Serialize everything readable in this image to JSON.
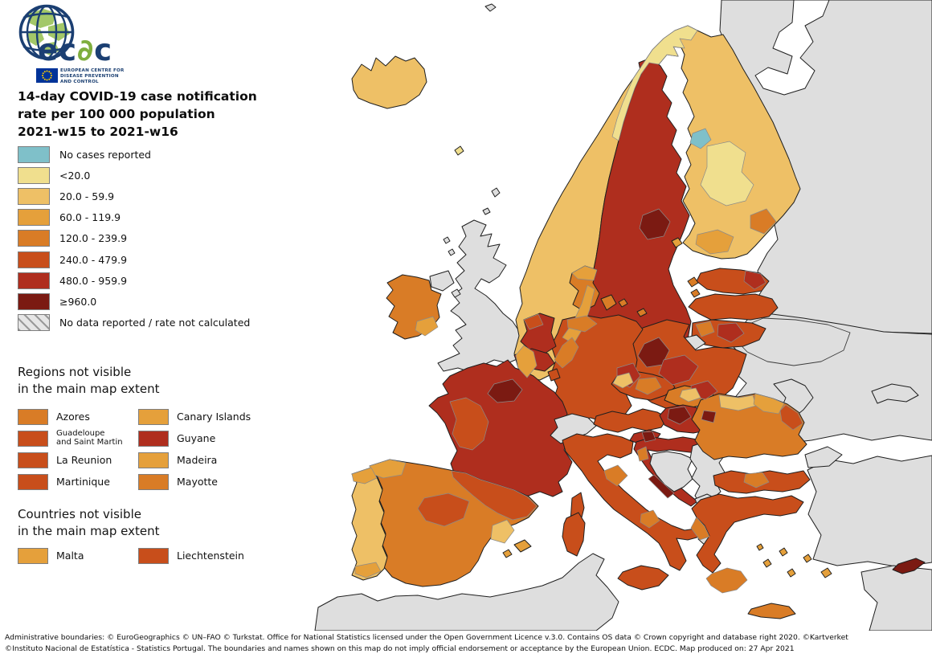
{
  "header": {
    "logo": {
      "brand_parts": [
        "ec",
        "∂",
        "c"
      ],
      "caption_lines": [
        "EUROPEAN CENTRE FOR",
        "DISEASE PREVENTION",
        "AND CONTROL"
      ]
    },
    "title_lines": [
      "14-day COVID-19 case notification",
      "rate per 100 000 population",
      "2021-w15 to 2021-w16"
    ]
  },
  "legend": {
    "items": [
      {
        "key": "no_cases",
        "label": "No cases reported",
        "color": "#7FC0C9",
        "hatched": false
      },
      {
        "key": "lt_20",
        "label": "<20.0",
        "color": "#F0DF8E",
        "hatched": false
      },
      {
        "key": "b20_59",
        "label": "20.0 - 59.9",
        "color": "#EEC066",
        "hatched": false
      },
      {
        "key": "b60_119",
        "label": "60.0 - 119.9",
        "color": "#E5A03B",
        "hatched": false
      },
      {
        "key": "b120_239",
        "label": "120.0 - 239.9",
        "color": "#D97C26",
        "hatched": false
      },
      {
        "key": "b240_479",
        "label": "240.0 - 479.9",
        "color": "#C84E1B",
        "hatched": false
      },
      {
        "key": "b480_959",
        "label": "480.0 - 959.9",
        "color": "#AF2E1E",
        "hatched": false
      },
      {
        "key": "ge_960",
        "label": "≥960.0",
        "color": "#7B1A12",
        "hatched": false
      },
      {
        "key": "no_data",
        "label": "No data reported / rate not calculated",
        "color": "#DEDEDE",
        "hatched": true
      }
    ]
  },
  "regions_not_visible": {
    "title_lines": [
      "Regions not visible",
      "in the main map extent"
    ],
    "items": [
      {
        "label_lines": [
          "Azores"
        ],
        "category": "b120_239"
      },
      {
        "label_lines": [
          "Canary Islands"
        ],
        "category": "b60_119"
      },
      {
        "label_lines": [
          "Guadeloupe",
          "and Saint Martin"
        ],
        "category": "b240_479",
        "small": true
      },
      {
        "label_lines": [
          "Guyane"
        ],
        "category": "b480_959"
      },
      {
        "label_lines": [
          "La Reunion"
        ],
        "category": "b240_479"
      },
      {
        "label_lines": [
          "Madeira"
        ],
        "category": "b60_119"
      },
      {
        "label_lines": [
          "Martinique"
        ],
        "category": "b240_479"
      },
      {
        "label_lines": [
          "Mayotte"
        ],
        "category": "b120_239"
      }
    ]
  },
  "countries_not_visible": {
    "title_lines": [
      "Countries not visible",
      "in the main map extent"
    ],
    "items": [
      {
        "label_lines": [
          "Malta"
        ],
        "category": "b60_119"
      },
      {
        "label_lines": [
          "Liechtenstein"
        ],
        "category": "b240_479"
      }
    ]
  },
  "footer": {
    "lines": [
      "Administrative boundaries: © EuroGeographics © UN–FAO © Turkstat. Office for National Statistics licensed under the Open Government Licence v.3.0. Contains OS data © Crown copyright and database right 2020. ©Kartverket",
      "©Instituto Nacional de Estatística - Statistics Portugal. The boundaries and names shown on this map do not imply official endorsement or acceptance by the European Union. ECDC. Map produced on: 27 Apr 2021"
    ]
  },
  "map": {
    "regions": [
      {
        "name": "russia",
        "category": "no_data",
        "type": "country"
      },
      {
        "name": "white-sea",
        "category": "sea",
        "type": "country"
      },
      {
        "name": "belarus-ukraine",
        "category": "no_data",
        "type": "country"
      },
      {
        "name": "belarus-border",
        "category": "none",
        "type": "border"
      },
      {
        "name": "crimea",
        "category": "no_data",
        "type": "country"
      },
      {
        "name": "moldova",
        "category": "no_data",
        "type": "country"
      },
      {
        "name": "turkey",
        "category": "no_data",
        "type": "country"
      },
      {
        "name": "turkey-thrace",
        "category": "no_data",
        "type": "country"
      },
      {
        "name": "syria",
        "category": "no_data",
        "type": "country"
      },
      {
        "name": "north-africa",
        "category": "no_data",
        "type": "country"
      },
      {
        "name": "jan-mayen",
        "category": "no_data",
        "type": "country"
      },
      {
        "name": "iceland",
        "category": "b20_59",
        "type": "country"
      },
      {
        "name": "faroe",
        "category": "lt_20",
        "type": "country"
      },
      {
        "name": "shetland",
        "category": "no_data",
        "type": "country"
      },
      {
        "name": "orkney",
        "category": "no_data",
        "type": "country"
      },
      {
        "name": "hebrides",
        "category": "no_data",
        "type": "country"
      },
      {
        "name": "uk",
        "category": "no_data",
        "type": "country"
      },
      {
        "name": "northern-ireland",
        "category": "no_data",
        "type": "country"
      },
      {
        "name": "isle-of-man",
        "category": "no_data",
        "type": "country"
      },
      {
        "name": "ireland",
        "category": "b120_239",
        "type": "country"
      },
      {
        "name": "norway",
        "category": "b20_59",
        "type": "country"
      },
      {
        "name": "sweden",
        "category": "b480_959",
        "type": "country"
      },
      {
        "name": "gotland",
        "category": "b480_959",
        "type": "country"
      },
      {
        "name": "oland",
        "category": "b480_959",
        "type": "country"
      },
      {
        "name": "finland",
        "category": "b20_59",
        "type": "country"
      },
      {
        "name": "aland",
        "category": "b60_119",
        "type": "country"
      },
      {
        "name": "estonia",
        "category": "b240_479",
        "type": "country"
      },
      {
        "name": "estonia-islands",
        "category": "b120_239",
        "type": "country"
      },
      {
        "name": "latvia",
        "category": "b240_479",
        "type": "country"
      },
      {
        "name": "lithuania",
        "category": "b240_479",
        "type": "country"
      },
      {
        "name": "kaliningrad",
        "category": "no_data",
        "type": "country"
      },
      {
        "name": "poland",
        "category": "b240_479",
        "type": "country"
      },
      {
        "name": "germany",
        "category": "b240_479",
        "type": "country"
      },
      {
        "name": "denmark",
        "category": "b120_239",
        "type": "country"
      },
      {
        "name": "denmark-isles",
        "category": "b120_239",
        "type": "country"
      },
      {
        "name": "bornholm",
        "category": "b120_239",
        "type": "country"
      },
      {
        "name": "netherlands",
        "category": "b480_959",
        "type": "country"
      },
      {
        "name": "belgium",
        "category": "b480_959",
        "type": "country"
      },
      {
        "name": "luxembourg",
        "category": "b240_479",
        "type": "country"
      },
      {
        "name": "france",
        "category": "b480_959",
        "type": "country"
      },
      {
        "name": "corsica",
        "category": "b240_479",
        "type": "country"
      },
      {
        "name": "spain",
        "category": "b120_239",
        "type": "country"
      },
      {
        "name": "balearics",
        "category": "b60_119",
        "type": "country"
      },
      {
        "name": "portugal",
        "category": "b20_59",
        "type": "country"
      },
      {
        "name": "switzerland",
        "category": "no_data",
        "type": "country"
      },
      {
        "name": "italy",
        "category": "b240_479",
        "type": "country"
      },
      {
        "name": "sicily",
        "category": "b240_479",
        "type": "country"
      },
      {
        "name": "sardinia",
        "category": "b240_479",
        "type": "country"
      },
      {
        "name": "austria",
        "category": "b240_479",
        "type": "country"
      },
      {
        "name": "czechia",
        "category": "b240_479",
        "type": "country"
      },
      {
        "name": "slovakia",
        "category": "b120_239",
        "type": "country"
      },
      {
        "name": "hungary",
        "category": "b480_959",
        "type": "country"
      },
      {
        "name": "slovenia",
        "category": "b480_959",
        "type": "country"
      },
      {
        "name": "croatia",
        "category": "b480_959",
        "type": "country"
      },
      {
        "name": "bosnia",
        "category": "no_data",
        "type": "country"
      },
      {
        "name": "serbia",
        "category": "no_data",
        "type": "country"
      },
      {
        "name": "montenegro-albania-nmk",
        "category": "no_data",
        "type": "country"
      },
      {
        "name": "romania",
        "category": "b120_239",
        "type": "country"
      },
      {
        "name": "bulgaria",
        "category": "b240_479",
        "type": "country"
      },
      {
        "name": "greece",
        "category": "b240_479",
        "type": "country"
      },
      {
        "name": "crete",
        "category": "b120_239",
        "type": "country"
      },
      {
        "name": "aegean-islands",
        "category": "b60_119",
        "type": "country"
      },
      {
        "name": "cyprus",
        "category": "ge_960",
        "type": "country"
      },
      {
        "name": "norway-north",
        "category": "lt_20",
        "type": "patch"
      },
      {
        "name": "norway-south-center",
        "category": "b60_119",
        "type": "patch"
      },
      {
        "name": "norway-oslo",
        "category": "b120_239",
        "type": "patch"
      },
      {
        "name": "norway-south-tip",
        "category": "b60_119",
        "type": "patch"
      },
      {
        "name": "sweden-north-patch",
        "category": "ge_960",
        "type": "patch"
      },
      {
        "name": "sweden-south-patch",
        "category": "ge_960",
        "type": "patch"
      },
      {
        "name": "finland-center",
        "category": "lt_20",
        "type": "patch"
      },
      {
        "name": "finland-lake",
        "category": "no_cases",
        "type": "patch"
      },
      {
        "name": "finland-south",
        "category": "b60_119",
        "type": "patch"
      },
      {
        "name": "finland-southeast",
        "category": "b120_239",
        "type": "patch"
      },
      {
        "name": "estonia-ne",
        "category": "b480_959",
        "type": "patch"
      },
      {
        "name": "lithuania-dark",
        "category": "b480_959",
        "type": "patch"
      },
      {
        "name": "lithuania-west",
        "category": "b120_239",
        "type": "patch"
      },
      {
        "name": "poland-south",
        "category": "b480_959",
        "type": "patch"
      },
      {
        "name": "poland-se",
        "category": "b480_959",
        "type": "patch"
      },
      {
        "name": "germany-north",
        "category": "b120_239",
        "type": "patch"
      },
      {
        "name": "germany-east",
        "category": "b480_959",
        "type": "patch"
      },
      {
        "name": "denmark-north",
        "category": "b60_119",
        "type": "patch"
      },
      {
        "name": "netherlands-north",
        "category": "b240_479",
        "type": "patch"
      },
      {
        "name": "ireland-se",
        "category": "b60_119",
        "type": "patch"
      },
      {
        "name": "france-west",
        "category": "b240_479",
        "type": "patch"
      },
      {
        "name": "paris",
        "category": "ge_960",
        "type": "patch"
      },
      {
        "name": "spain-nw",
        "category": "b60_119",
        "type": "patch"
      },
      {
        "name": "spain-ne",
        "category": "b240_479",
        "type": "patch"
      },
      {
        "name": "spain-center",
        "category": "b240_479",
        "type": "patch"
      },
      {
        "name": "spain-valencia",
        "category": "b20_59",
        "type": "patch"
      },
      {
        "name": "portugal-north",
        "category": "b60_119",
        "type": "patch"
      },
      {
        "name": "portugal-south",
        "category": "b60_119",
        "type": "patch"
      },
      {
        "name": "italy-center",
        "category": "b120_239",
        "type": "patch"
      },
      {
        "name": "italy-south",
        "category": "b120_239",
        "type": "patch"
      },
      {
        "name": "czechia-west",
        "category": "b20_59",
        "type": "patch"
      },
      {
        "name": "czechia-center",
        "category": "b120_239",
        "type": "patch"
      },
      {
        "name": "slovakia-center",
        "category": "b20_59",
        "type": "patch"
      },
      {
        "name": "hungary-west",
        "category": "ge_960",
        "type": "patch"
      },
      {
        "name": "hungary-ne",
        "category": "ge_960",
        "type": "patch"
      },
      {
        "name": "slovenia-patch",
        "category": "ge_960",
        "type": "patch"
      },
      {
        "name": "croatia-istria",
        "category": "b120_239",
        "type": "patch"
      },
      {
        "name": "croatia-coast",
        "category": "ge_960",
        "type": "patch"
      },
      {
        "name": "romania-north",
        "category": "b20_59",
        "type": "patch"
      },
      {
        "name": "romania-ne",
        "category": "b60_119",
        "type": "patch"
      },
      {
        "name": "romania-east",
        "category": "b240_479",
        "type": "patch"
      },
      {
        "name": "bulgaria-patch",
        "category": "b120_239",
        "type": "patch"
      },
      {
        "name": "greece-west",
        "category": "b120_239",
        "type": "patch"
      },
      {
        "name": "peloponnese",
        "category": "b120_239",
        "type": "patch"
      }
    ]
  }
}
